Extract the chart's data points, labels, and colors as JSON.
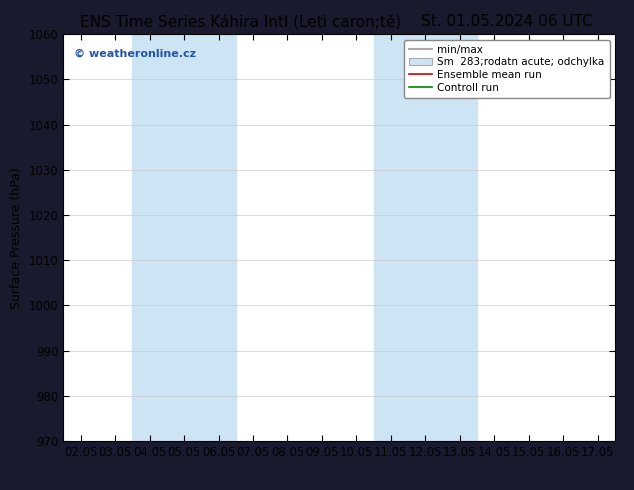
{
  "title_left": "ENS Time Series Káhira Intl (Leti caron;tě)",
  "title_right": "St. 01.05.2024 06 UTC",
  "ylabel": "Surface Pressure (hPa)",
  "ylim": [
    970,
    1060
  ],
  "yticks": [
    970,
    980,
    990,
    1000,
    1010,
    1020,
    1030,
    1040,
    1050,
    1060
  ],
  "xtick_labels": [
    "02.05",
    "03.05",
    "04.05",
    "05.05",
    "06.05",
    "07.05",
    "08.05",
    "09.05",
    "10.05",
    "11.05",
    "12.05",
    "13.05",
    "14.05",
    "15.05",
    "16.05",
    "17.05"
  ],
  "watermark": "© weatheronline.cz",
  "legend_entries": [
    "min/max",
    "Sm  283;rodatn acute; odchylka",
    "Ensemble mean run",
    "Controll run"
  ],
  "shaded_regions": [
    {
      "xstart": 2,
      "xend": 4,
      "color": "#cde4f5"
    },
    {
      "xstart": 9,
      "xend": 11,
      "color": "#cde4f5"
    }
  ],
  "mean_line_color": "#cc0000",
  "control_line_color": "#008800",
  "figure_bg_color": "#1a1a2e",
  "plot_bg_color": "#ffffff",
  "grid_color": "#cccccc",
  "title_fontsize": 11,
  "axis_label_fontsize": 9,
  "tick_fontsize": 8.5,
  "legend_fontsize": 7.5,
  "watermark_color": "#2255aa"
}
